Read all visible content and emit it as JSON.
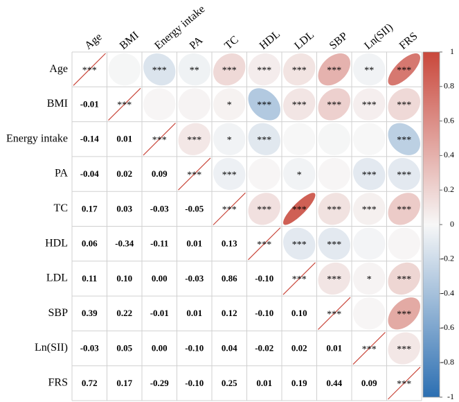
{
  "chart_data": {
    "type": "corrplot",
    "variables": [
      "Age",
      "BMI",
      "Energy intake",
      "PA",
      "TC",
      "HDL",
      "LDL",
      "SBP",
      "Ln(SII)",
      "FRS"
    ],
    "matrix": [
      [
        1,
        null,
        null,
        null,
        null,
        null,
        null,
        null,
        null,
        null
      ],
      [
        -0.01,
        1,
        null,
        null,
        null,
        null,
        null,
        null,
        null,
        null
      ],
      [
        -0.14,
        0.01,
        1,
        null,
        null,
        null,
        null,
        null,
        null,
        null
      ],
      [
        -0.04,
        0.02,
        0.09,
        1,
        null,
        null,
        null,
        null,
        null,
        null
      ],
      [
        0.17,
        0.03,
        -0.03,
        -0.05,
        1,
        null,
        null,
        null,
        null,
        null
      ],
      [
        0.06,
        -0.34,
        -0.11,
        0.01,
        0.13,
        1,
        null,
        null,
        null,
        null
      ],
      [
        0.11,
        0.1,
        0,
        -0.03,
        0.86,
        -0.1,
        1,
        null,
        null,
        null
      ],
      [
        0.39,
        0.22,
        -0.01,
        0.01,
        0.12,
        -0.1,
        0.1,
        1,
        null,
        null
      ],
      [
        -0.03,
        0.05,
        0,
        -0.1,
        0.04,
        -0.02,
        0.02,
        0.01,
        1,
        null
      ],
      [
        0.72,
        0.17,
        -0.29,
        -0.1,
        0.25,
        0.01,
        0.19,
        0.44,
        0.09,
        1
      ]
    ],
    "value_labels": [
      [
        null,
        null,
        null,
        null,
        null,
        null,
        null,
        null,
        null,
        null
      ],
      [
        "-0.01",
        null,
        null,
        null,
        null,
        null,
        null,
        null,
        null,
        null
      ],
      [
        "-0.14",
        "0.01",
        null,
        null,
        null,
        null,
        null,
        null,
        null,
        null
      ],
      [
        "-0.04",
        "0.02",
        "0.09",
        null,
        null,
        null,
        null,
        null,
        null,
        null
      ],
      [
        "0.17",
        "0.03",
        "-0.03",
        "-0.05",
        null,
        null,
        null,
        null,
        null,
        null
      ],
      [
        "0.06",
        "-0.34",
        "-0.11",
        "0.01",
        "0.13",
        null,
        null,
        null,
        null,
        null
      ],
      [
        "0.11",
        "0.10",
        "0.00",
        "-0.03",
        "0.86",
        "-0.10",
        null,
        null,
        null,
        null
      ],
      [
        "0.39",
        "0.22",
        "-0.01",
        "0.01",
        "0.12",
        "-0.10",
        "0.10",
        null,
        null,
        null
      ],
      [
        "-0.03",
        "0.05",
        "0.00",
        "-0.10",
        "0.04",
        "-0.02",
        "0.02",
        "0.01",
        null,
        null
      ],
      [
        "0.72",
        "0.17",
        "-0.29",
        "-0.10",
        "0.25",
        "0.01",
        "0.19",
        "0.44",
        "0.09",
        null
      ]
    ],
    "significance": [
      [
        "***",
        null,
        "***",
        "**",
        "***",
        "***",
        "***",
        "***",
        "**",
        "***"
      ],
      [
        null,
        "***",
        null,
        null,
        "*",
        "***",
        "***",
        "***",
        "***",
        "***"
      ],
      [
        null,
        null,
        "***",
        "***",
        "*",
        "***",
        null,
        null,
        null,
        "***"
      ],
      [
        null,
        null,
        null,
        "***",
        "***",
        null,
        "*",
        null,
        "***",
        "***"
      ],
      [
        null,
        null,
        null,
        null,
        "***",
        "***",
        "***",
        "***",
        "***",
        "***"
      ],
      [
        null,
        null,
        null,
        null,
        null,
        "***",
        "***",
        "***",
        null,
        null
      ],
      [
        null,
        null,
        null,
        null,
        null,
        null,
        "***",
        "***",
        "*",
        "***"
      ],
      [
        null,
        null,
        null,
        null,
        null,
        null,
        null,
        "***",
        null,
        "***"
      ],
      [
        null,
        null,
        null,
        null,
        null,
        null,
        null,
        null,
        "***",
        "***"
      ],
      [
        null,
        null,
        null,
        null,
        null,
        null,
        null,
        null,
        null,
        "***"
      ]
    ],
    "colors": [
      "#2c6fb2",
      "#f7f7f7",
      "#c9473b"
    ],
    "ylim": [
      -1,
      1
    ],
    "yticks": [
      -1,
      -0.8,
      -0.6,
      -0.4,
      -0.2,
      0,
      0.2,
      0.4,
      0.6,
      0.8,
      1
    ]
  }
}
